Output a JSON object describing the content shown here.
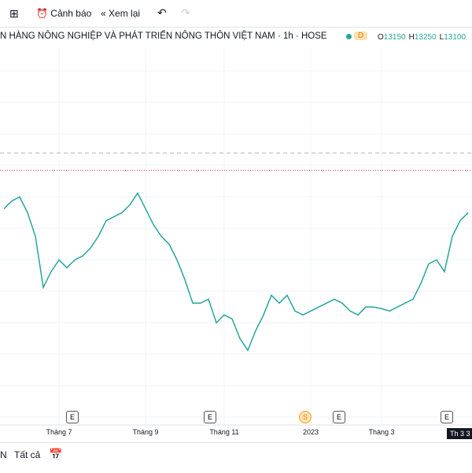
{
  "toolbar": {
    "alert": "Cảnh báo",
    "replay": "Xem lại"
  },
  "header": {
    "title": "N HÀNG NÔNG NGHIỆP VÀ PHÁT TRIỂN NÔNG THÔN VIỆT NAM · 1h · HOSE",
    "badge": "D",
    "ohlc": [
      {
        "label": "O",
        "value": 13150
      },
      {
        "label": "H",
        "value": 13250
      },
      {
        "label": "L",
        "value": 13100
      }
    ]
  },
  "chart_data": {
    "type": "line",
    "color": "#26a69a",
    "categories": [
      null,
      null,
      null,
      null,
      null,
      null,
      null,
      "Tháng 7",
      null,
      null,
      null,
      null,
      null,
      null,
      null,
      null,
      null,
      null,
      "Tháng 9",
      null,
      null,
      null,
      null,
      null,
      null,
      null,
      null,
      null,
      "Tháng 11",
      null,
      null,
      null,
      null,
      null,
      null,
      null,
      null,
      null,
      null,
      "2023",
      null,
      null,
      null,
      null,
      null,
      null,
      null,
      null,
      "Tháng 3",
      null,
      null,
      null,
      null,
      null,
      null,
      null,
      null,
      null,
      null,
      null
    ],
    "values": [
      13290,
      13490,
      13590,
      13190,
      12590,
      11290,
      11690,
      11990,
      11790,
      11990,
      12090,
      12290,
      12590,
      12990,
      13090,
      13190,
      13390,
      13690,
      13290,
      12890,
      12590,
      12390,
      11990,
      11490,
      10890,
      10890,
      10990,
      10390,
      10590,
      10490,
      9990,
      9690,
      10190,
      10590,
      11090,
      10890,
      11090,
      10690,
      10590,
      10690,
      10790,
      10890,
      10990,
      10890,
      10690,
      10590,
      10790,
      10790,
      10750,
      10690,
      10790,
      10890,
      10990,
      11390,
      11890,
      11990,
      11690,
      12590,
      12990,
      13190
    ],
    "ylim": [
      7790,
      17000
    ],
    "levels": [
      {
        "value": 14710,
        "color": "#b2b5be",
        "style": "dashed"
      },
      {
        "value": 14270,
        "color": "#f23645",
        "style": "dotted"
      }
    ],
    "crosshair": "Th 3 3"
  },
  "events": [
    "E",
    "E",
    "S",
    "E",
    "E"
  ],
  "footer": {
    "range": "N",
    "all": "Tất cả"
  }
}
